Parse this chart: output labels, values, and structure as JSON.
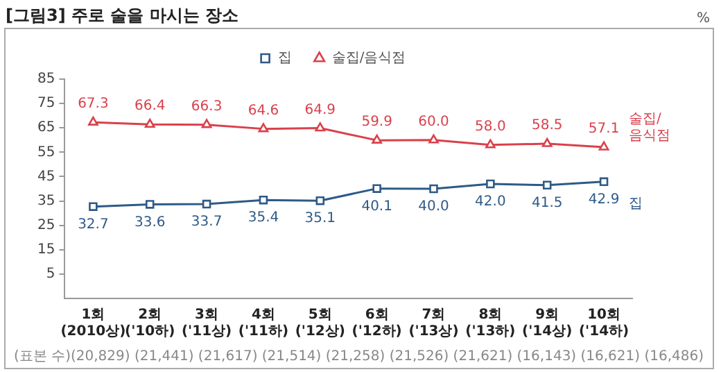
{
  "chart_data": {
    "type": "line",
    "title": "[그림3] 주로 술을 마시는 장소",
    "categories": [
      "1회\n(2010상)",
      "2회\n('10하)",
      "3회\n('11상)",
      "4회\n('11하)",
      "5회\n('12상)",
      "6회\n('12하)",
      "7회\n('13상)",
      "8회\n('13하)",
      "9회\n('14상)",
      "10회\n('14하)"
    ],
    "series": [
      {
        "name": "집",
        "color": "#2e5a87",
        "marker": "square",
        "values": [
          32.7,
          33.6,
          33.7,
          35.4,
          35.1,
          40.1,
          40.0,
          42.0,
          41.5,
          42.9
        ],
        "value_labels": [
          "32.7",
          "33.6",
          "33.7",
          "35.4",
          "35.1",
          "40.1",
          "40.0",
          "42.0",
          "41.5",
          "42.9"
        ]
      },
      {
        "name": "술집/음식점",
        "color": "#d9414b",
        "marker": "triangle",
        "values": [
          67.3,
          66.4,
          66.3,
          64.6,
          64.9,
          59.9,
          60.0,
          58.0,
          58.5,
          57.1
        ],
        "value_labels": [
          "67.3",
          "66.4",
          "66.3",
          "64.6",
          "64.9",
          "59.9",
          "60.0",
          "58.0",
          "58.5",
          "57.1"
        ]
      }
    ],
    "ylim": [
      -5,
      85
    ],
    "yticks": [
      5,
      15,
      25,
      35,
      45,
      55,
      65,
      75,
      85
    ],
    "grid": false,
    "legend": "top",
    "annotations": [
      "%",
      "(표본 수)(20,829) (21,441) (21,617) (21,514) (21,258) (21,526) (21,621) (16,143) (16,621) (16,486)"
    ]
  }
}
